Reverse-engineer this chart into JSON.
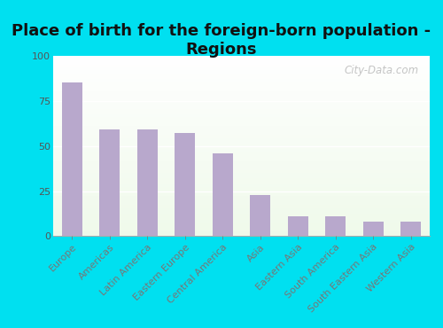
{
  "title": "Place of birth for the foreign-born population -\nRegions",
  "categories": [
    "Europe",
    "Americas",
    "Latin America",
    "Eastern Europe",
    "Central America",
    "Asia",
    "Eastern Asia",
    "South America",
    "South Eastern Asia",
    "Western Asia"
  ],
  "values": [
    85,
    59,
    59,
    57,
    46,
    23,
    11,
    11,
    8,
    8
  ],
  "bar_color": "#b8a8cc",
  "background_outer": "#00e0f0",
  "background_inner_topleft": "#e8f5e2",
  "background_inner_bottomright": "#f8fef5",
  "ylim": [
    0,
    100
  ],
  "yticks": [
    0,
    25,
    50,
    75,
    100
  ],
  "title_fontsize": 13,
  "tick_fontsize": 8,
  "watermark": "City-Data.com",
  "figwidth": 5.0,
  "figheight": 3.7
}
